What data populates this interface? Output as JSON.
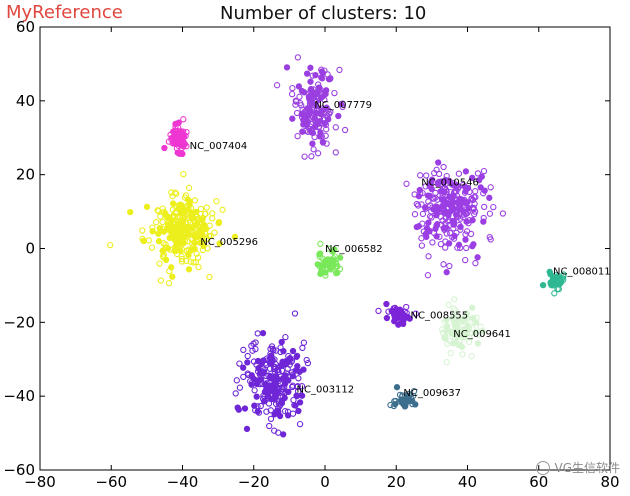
{
  "header": {
    "brand": "MyReference",
    "title": "Number of clusters: 10"
  },
  "watermark": "VG生信软件",
  "colors": {
    "brand": "#e0463e",
    "axis": "#000000",
    "background": "#ffffff"
  },
  "chart_data": {
    "type": "scatter",
    "title": "Number of clusters: 10",
    "xlabel": "",
    "ylabel": "",
    "xlim": [
      -80,
      80
    ],
    "ylim": [
      -60,
      60
    ],
    "xticks": [
      -80,
      -60,
      -40,
      -20,
      0,
      20,
      40,
      60,
      80
    ],
    "yticks": [
      -60,
      -40,
      -20,
      0,
      20,
      40,
      60
    ],
    "grid": false,
    "clusters": [
      {
        "label": "NC_007779",
        "color": "#9a3fe0",
        "label_at": [
          -3,
          38
        ],
        "center": [
          -3,
          38
        ],
        "spread": [
          5,
          9
        ],
        "n": 160
      },
      {
        "label": "NC_007404",
        "color": "#ee36d2",
        "label_at": [
          -38,
          27
        ],
        "center": [
          -41,
          30
        ],
        "spread": [
          2,
          3
        ],
        "n": 60
      },
      {
        "label": "NC_005296",
        "color": "#ecef1c",
        "label_at": [
          -35,
          1
        ],
        "center": [
          -41,
          5
        ],
        "spread": [
          8,
          8
        ],
        "n": 260
      },
      {
        "label": "NC_010546",
        "color": "#9b3ee4",
        "label_at": [
          27,
          17
        ],
        "center": [
          35,
          11
        ],
        "spread": [
          9,
          9
        ],
        "n": 260
      },
      {
        "label": "NC_006582",
        "color": "#79e85a",
        "label_at": [
          0,
          -1
        ],
        "center": [
          1,
          -4
        ],
        "spread": [
          2.5,
          2.5
        ],
        "n": 60
      },
      {
        "label": "NC_008011",
        "color": "#2fb892",
        "label_at": [
          64,
          -7
        ],
        "center": [
          65,
          -9
        ],
        "spread": [
          2,
          2
        ],
        "n": 30
      },
      {
        "label": "NC_008555",
        "color": "#7b24d8",
        "label_at": [
          24,
          -19
        ],
        "center": [
          21,
          -18
        ],
        "spread": [
          3,
          2
        ],
        "n": 50
      },
      {
        "label": "NC_009641",
        "color": "#d6f3d2",
        "label_at": [
          36,
          -24
        ],
        "center": [
          38,
          -22
        ],
        "spread": [
          5,
          5
        ],
        "n": 90
      },
      {
        "label": "NC_003112",
        "color": "#6e26d6",
        "label_at": [
          -8,
          -39
        ],
        "center": [
          -14,
          -36
        ],
        "spread": [
          7,
          9
        ],
        "n": 230
      },
      {
        "label": "NC_009637",
        "color": "#3c6f8e",
        "label_at": [
          22,
          -40
        ],
        "center": [
          22,
          -41
        ],
        "spread": [
          2,
          2
        ],
        "n": 40
      }
    ]
  }
}
